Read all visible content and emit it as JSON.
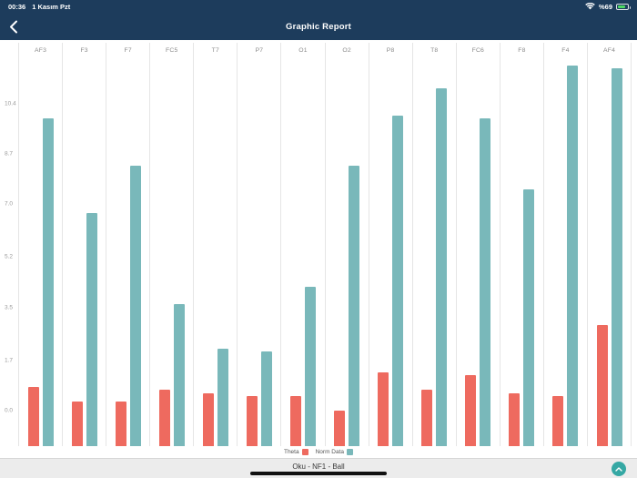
{
  "status_bar": {
    "time": "00:36",
    "date": "1 Kasım Pzt",
    "battery_percent": "%69"
  },
  "nav_bar": {
    "title": "Graphic Report",
    "back_icon": "chevron-left-icon"
  },
  "colors": {
    "nav_background": "#1d3c5c",
    "theta_bar": "#ee6a5f",
    "norm_data_bar": "#79b8ba",
    "footer_button": "#35a8a4"
  },
  "chart_data": {
    "type": "bar",
    "title": "",
    "categories": [
      "AF3",
      "F3",
      "F7",
      "FC5",
      "T7",
      "P7",
      "O1",
      "O2",
      "P8",
      "T8",
      "FC6",
      "F8",
      "F4",
      "AF4"
    ],
    "series": [
      {
        "name": "Theta",
        "color": "#ee6a5f",
        "values": [
          0.8,
          0.3,
          0.3,
          0.7,
          0.6,
          0.5,
          0.5,
          0.0,
          1.3,
          0.7,
          1.2,
          0.6,
          0.5,
          2.9
        ]
      },
      {
        "name": "Norm Data",
        "color": "#79b8ba",
        "values": [
          9.9,
          6.7,
          8.3,
          3.6,
          2.1,
          2.0,
          4.2,
          8.3,
          10.0,
          10.9,
          9.9,
          7.5,
          11.7,
          11.6
        ]
      }
    ],
    "y_ticks": [
      10.4,
      8.7,
      7.0,
      5.2,
      3.5,
      1.7,
      0.0
    ],
    "ylim": [
      -1.2,
      11.9
    ],
    "xlabel": "",
    "ylabel": "",
    "grid": "vertical-only",
    "legend_position": "bottom",
    "category_label_position": "top"
  },
  "footer": {
    "label": "Oku - NF1 - Ball",
    "scroll_icon": "chevron-up-icon"
  }
}
